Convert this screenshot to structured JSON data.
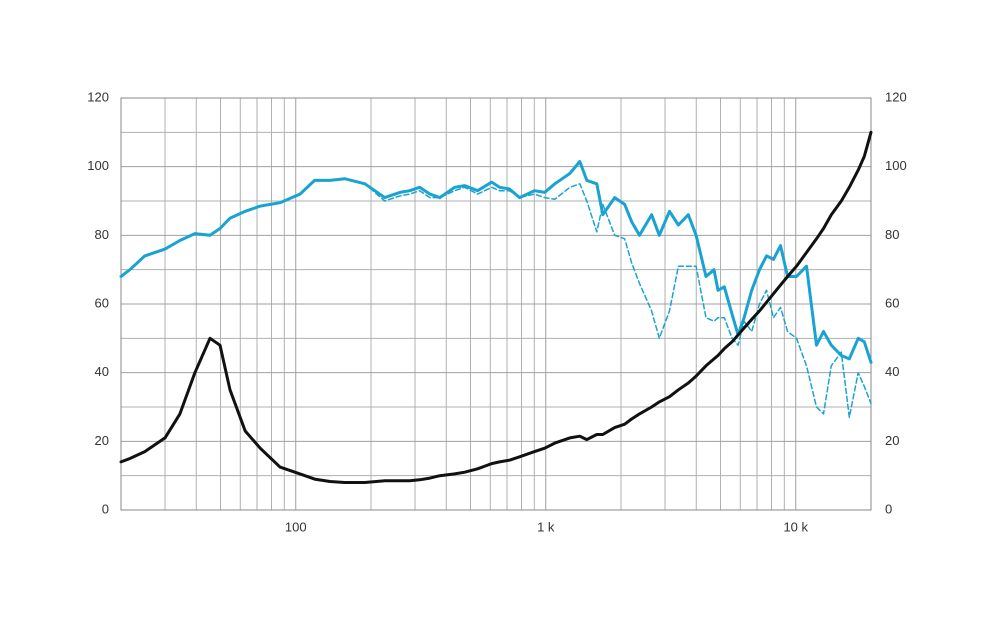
{
  "chart_data": {
    "type": "line",
    "xscale": "log",
    "xlim": [
      20,
      20000
    ],
    "xticks": [
      {
        "value": 100,
        "label": "100"
      },
      {
        "value": 1000,
        "label": "1 k"
      },
      {
        "value": 10000,
        "label": "10 k"
      }
    ],
    "xminorticks": [
      20,
      30,
      40,
      50,
      60,
      70,
      80,
      90,
      200,
      300,
      400,
      500,
      600,
      700,
      800,
      900,
      2000,
      3000,
      4000,
      5000,
      6000,
      7000,
      8000,
      9000,
      20000
    ],
    "ylim": [
      0,
      120
    ],
    "yticks": [
      0,
      20,
      40,
      60,
      80,
      100,
      120
    ],
    "yminorticks": [
      10,
      30,
      50,
      70,
      90,
      110
    ],
    "y2lim": [
      0,
      120
    ],
    "y2ticks": [
      0,
      20,
      40,
      60,
      80,
      100,
      120
    ],
    "grid": true,
    "x": [
      20,
      21.7,
      24.9,
      30.0,
      34.4,
      39.5,
      45.4,
      49.8,
      54.6,
      62.8,
      72.1,
      86.5,
      104,
      119,
      137,
      157,
      189,
      227,
      261,
      286,
      313,
      344,
      377,
      432,
      474,
      534,
      608,
      653,
      716,
      786,
      902,
      990,
      1087,
      1248,
      1368,
      1459,
      1600,
      1691,
      1887,
      2070,
      2206,
      2371,
      2651,
      2847,
      3125,
      3393,
      3716,
      3995,
      4377,
      4710,
      4889,
      5179,
      5567,
      5880,
      6214,
      6668,
      7162,
      7640,
      8149,
      8693,
      9275,
      10070,
      11040,
      12110,
      12910,
      13880,
      15210,
      16370,
      17780,
      18810,
      20000
    ],
    "series": [
      {
        "color": "#19a3d3",
        "style": "solid",
        "width": 3,
        "values": [
          68,
          70,
          74,
          76,
          78.5,
          80.5,
          80,
          82,
          85,
          87,
          88.5,
          89.5,
          92,
          96,
          96,
          96.5,
          95,
          91,
          92.5,
          93,
          94,
          92,
          91,
          94,
          94.5,
          93,
          95.5,
          94,
          93.5,
          91,
          93,
          92.5,
          95,
          98,
          101.5,
          96,
          95,
          86,
          91,
          89,
          84,
          80,
          86,
          80,
          87,
          83,
          86,
          80,
          68,
          70,
          64,
          65,
          57,
          51,
          56,
          64,
          70,
          74,
          73,
          77,
          68,
          68,
          71,
          48,
          52,
          48,
          45,
          44,
          50,
          49,
          43
        ]
      },
      {
        "color": "#19a3d3",
        "style": "dashed",
        "width": 1.5,
        "values": [
          68,
          70,
          74,
          76,
          78.5,
          80.5,
          80,
          82,
          85,
          87,
          88.5,
          89.5,
          92,
          96,
          96,
          96.5,
          95,
          90,
          91.5,
          92,
          93,
          91,
          91,
          93,
          94,
          92,
          94,
          93,
          93,
          91,
          92,
          91,
          90.5,
          94,
          95,
          90,
          81,
          89,
          80,
          79,
          72,
          66,
          58,
          50,
          58,
          71,
          71,
          71,
          56,
          55,
          56,
          56,
          50,
          48,
          55,
          52,
          60,
          64,
          56,
          59,
          52,
          50,
          42,
          30,
          28,
          42,
          46,
          27,
          40,
          36,
          31
        ]
      },
      {
        "color": "#111111",
        "style": "solid",
        "width": 3,
        "values": [
          14,
          15,
          17,
          21,
          28,
          40,
          50,
          48,
          35,
          23,
          18,
          12.5,
          10.5,
          9,
          8.3,
          8,
          8,
          8.5,
          8.5,
          8.5,
          8.8,
          9.3,
          10,
          10.5,
          11,
          12,
          13.5,
          14,
          14.5,
          15.5,
          17,
          18,
          19.5,
          21,
          21.5,
          20.5,
          22,
          22,
          24,
          25,
          26.5,
          28,
          30,
          31.5,
          33,
          35,
          37,
          39,
          42,
          44,
          45,
          47,
          49,
          51,
          53,
          55.5,
          58,
          60.5,
          63,
          65.5,
          68,
          71,
          75,
          79,
          82,
          86,
          90,
          94,
          99,
          103,
          110
        ]
      }
    ]
  }
}
